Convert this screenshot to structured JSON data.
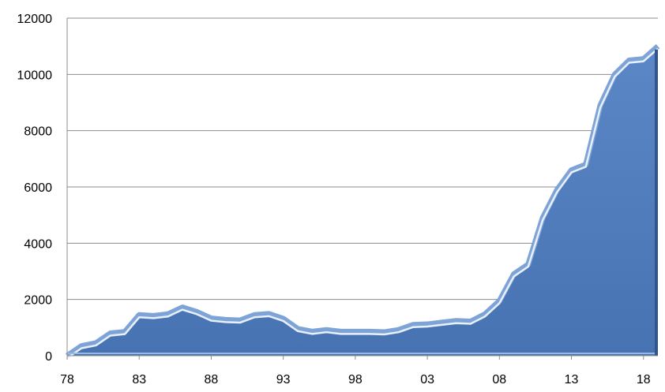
{
  "chart_data": {
    "type": "area",
    "title": "",
    "xlabel": "",
    "ylabel": "",
    "x": [
      1978,
      1979,
      1980,
      1981,
      1982,
      1983,
      1984,
      1985,
      1986,
      1987,
      1988,
      1989,
      1990,
      1991,
      1992,
      1993,
      1994,
      1995,
      1996,
      1997,
      1998,
      1999,
      2000,
      2001,
      2002,
      2003,
      2004,
      2005,
      2006,
      2007,
      2008,
      2009,
      2010,
      2011,
      2012,
      2013,
      2014,
      2015,
      2016,
      2017,
      2018,
      2019
    ],
    "x_tick_values": [
      1978,
      1983,
      1988,
      1993,
      1998,
      2003,
      2008,
      2013,
      2018
    ],
    "x_tick_labels": [
      "78",
      "83",
      "88",
      "93",
      "98",
      "03",
      "08",
      "13",
      "18"
    ],
    "xlim": [
      1978,
      2019
    ],
    "series": [
      {
        "values": [
          0,
          350,
          450,
          800,
          850,
          1450,
          1420,
          1480,
          1720,
          1560,
          1330,
          1280,
          1260,
          1450,
          1490,
          1320,
          960,
          860,
          920,
          860,
          860,
          860,
          840,
          920,
          1100,
          1120,
          1180,
          1240,
          1220,
          1480,
          1950,
          2900,
          3250,
          4900,
          5900,
          6600,
          6800,
          8900,
          10000,
          10500,
          10550,
          11000
        ]
      }
    ],
    "ylim": [
      0,
      12000
    ],
    "y_ticks": [
      0,
      2000,
      4000,
      6000,
      8000,
      10000,
      12000
    ],
    "y_tick_labels": [
      "0",
      "2000",
      "4000",
      "6000",
      "8000",
      "10000",
      "12000"
    ],
    "grid": true,
    "legend": "none",
    "colors": {
      "fill": "#5b87c7",
      "fill_dark": "#3f6aa8",
      "highlight": "#e8f1fb",
      "outline": "#7ea3d6",
      "grid": "#8c8c8c",
      "axis": "#8c8c8c"
    }
  }
}
